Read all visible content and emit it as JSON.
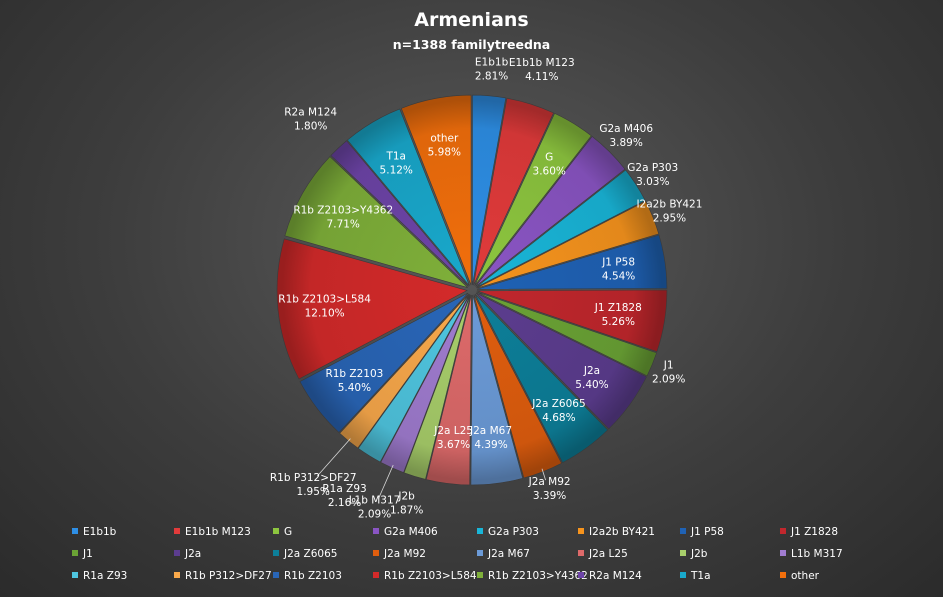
{
  "chart_data": {
    "type": "pie",
    "title": "Armenians",
    "subtitle": "n=1388   familytreedna",
    "slices": [
      {
        "name": "E1b1b",
        "value": 2.81,
        "label": "2.81%",
        "color": "#2e8fe6"
      },
      {
        "name": "E1b1b M123",
        "value": 4.11,
        "label": "4.11%",
        "color": "#e23b3b"
      },
      {
        "name": "G",
        "value": 3.6,
        "label": "3.60%",
        "color": "#8dc63f"
      },
      {
        "name": "G2a M406",
        "value": 3.89,
        "label": "3.89%",
        "color": "#8a55c4"
      },
      {
        "name": "G2a P303",
        "value": 3.03,
        "label": "3.03%",
        "color": "#19b6d8"
      },
      {
        "name": "I2a2b BY421",
        "value": 2.95,
        "label": "2.95%",
        "color": "#f7941d"
      },
      {
        "name": "J1 P58",
        "value": 4.54,
        "label": "4.54%",
        "color": "#1f62b5"
      },
      {
        "name": "J1 Z1828",
        "value": 5.26,
        "label": "5.26%",
        "color": "#c1272d"
      },
      {
        "name": "J1",
        "value": 2.09,
        "label": "2.09%",
        "color": "#6ba335"
      },
      {
        "name": "J2a",
        "value": 5.4,
        "label": "5.40%",
        "color": "#5c3d8f"
      },
      {
        "name": "J2a Z6065",
        "value": 4.68,
        "label": "4.68%",
        "color": "#0d7f99"
      },
      {
        "name": "J2a M92",
        "value": 3.39,
        "label": "3.39%",
        "color": "#e05e0e"
      },
      {
        "name": "J2a M67",
        "value": 4.39,
        "label": "4.39%",
        "color": "#6c9bd8"
      },
      {
        "name": "J2a L25",
        "value": 3.67,
        "label": "3.67%",
        "color": "#de6a6a"
      },
      {
        "name": "J2b",
        "value": 1.87,
        "label": "1.87%",
        "color": "#a8cf6b"
      },
      {
        "name": "L1b M317",
        "value": 2.09,
        "label": "2.09%",
        "color": "#a07cd0"
      },
      {
        "name": "R1a Z93",
        "value": 2.16,
        "label": "2.16%",
        "color": "#4fc6e0"
      },
      {
        "name": "R1b P312>DF27",
        "value": 1.95,
        "label": "1.95%",
        "color": "#f9a94b"
      },
      {
        "name": "R1b Z2103",
        "value": 5.4,
        "label": "5.40%",
        "color": "#2966b8"
      },
      {
        "name": "R1b Z2103>L584",
        "value": 12.1,
        "label": "12.10%",
        "color": "#d42a2a"
      },
      {
        "name": "R1b Z2103>Y4362",
        "value": 7.71,
        "label": "7.71%",
        "color": "#7fb03a"
      },
      {
        "name": "R2a M124",
        "value": 1.8,
        "label": "1.80%",
        "color": "#6e45a8"
      },
      {
        "name": "T1a",
        "value": 5.12,
        "label": "5.12%",
        "color": "#19a9cc"
      },
      {
        "name": "other",
        "value": 5.98,
        "label": "5.98%",
        "color": "#f26f0c"
      }
    ],
    "legend_position": "bottom"
  }
}
